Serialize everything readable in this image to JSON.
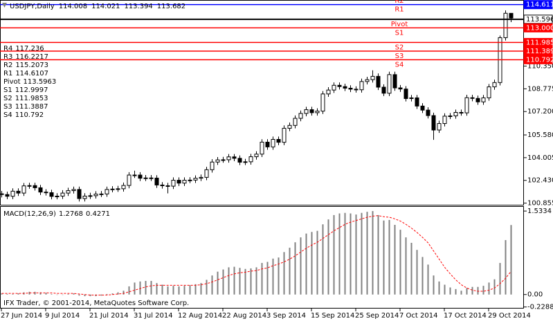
{
  "chart_data": [
    {
      "type": "candlestick",
      "title": "USDJPY,Daily",
      "categories": [
        "27 Jun 2014",
        null,
        null,
        null,
        null,
        null,
        null,
        null,
        "9 Jul 2014",
        null,
        null,
        null,
        null,
        null,
        null,
        null,
        "21 Jul 2014",
        null,
        null,
        null,
        null,
        null,
        null,
        null,
        "31 Jul 2014",
        null,
        null,
        null,
        null,
        null,
        null,
        null,
        "12 Aug 2014",
        null,
        null,
        null,
        null,
        null,
        null,
        null,
        "22 Aug 2014",
        null,
        null,
        null,
        null,
        null,
        null,
        null,
        "3 Sep 2014",
        null,
        null,
        null,
        null,
        null,
        null,
        null,
        "15 Sep 2014",
        null,
        null,
        null,
        null,
        null,
        null,
        null,
        "25 Sep 2014",
        null,
        null,
        null,
        null,
        null,
        null,
        null,
        "7 Oct 2014",
        null,
        null,
        null,
        null,
        null,
        null,
        null,
        "17 Oct 2014",
        null,
        null,
        null,
        null,
        null,
        null,
        null,
        "29 Oct 2014",
        null,
        null,
        null,
        null
      ],
      "open": [
        101.5,
        101.45,
        101.33,
        101.68,
        101.55,
        102.05,
        102.07,
        101.92,
        101.62,
        101.58,
        101.32,
        101.34,
        101.55,
        101.72,
        101.8,
        101.17,
        101.34,
        101.37,
        101.48,
        101.49,
        101.8,
        101.83,
        101.85,
        102.08,
        102.8,
        102.8,
        102.58,
        102.6,
        102.59,
        102.11,
        102.06,
        102.03,
        102.44,
        102.24,
        102.44,
        102.45,
        102.58,
        102.64,
        103.17,
        103.7,
        103.85,
        103.86,
        104.06,
        103.96,
        103.69,
        103.72,
        104.07,
        104.25,
        105.08,
        104.75,
        105.27,
        105.07,
        106.04,
        106.24,
        106.73,
        107.07,
        107.33,
        107.12,
        107.23,
        108.42,
        108.69,
        109.02,
        108.93,
        108.82,
        108.75,
        108.71,
        109.28,
        109.41,
        109.64,
        108.89,
        108.47,
        109.76,
        108.84,
        108.76,
        108.1,
        108.15,
        107.58,
        107.3,
        106.92,
        105.92,
        106.37,
        106.88,
        106.9,
        107.14,
        107.11,
        108.16,
        108.11,
        107.87,
        108.15,
        108.91,
        109.21,
        112.32,
        114.008
      ],
      "high": [
        101.7,
        101.65,
        101.88,
        101.88,
        102.25,
        102.27,
        102.27,
        102.12,
        101.82,
        101.78,
        101.54,
        101.75,
        101.92,
        102.0,
        102.0,
        101.54,
        101.57,
        101.68,
        101.69,
        102.0,
        102.03,
        102.05,
        102.28,
        103.0,
        103.1,
        103.0,
        102.8,
        102.8,
        102.79,
        102.31,
        102.26,
        102.64,
        102.64,
        102.64,
        102.65,
        102.78,
        102.84,
        103.37,
        103.9,
        104.05,
        104.06,
        104.26,
        104.26,
        104.16,
        103.92,
        104.27,
        104.45,
        105.28,
        105.28,
        105.47,
        105.47,
        106.24,
        106.44,
        106.93,
        107.27,
        107.53,
        107.53,
        107.43,
        108.62,
        108.89,
        109.22,
        109.22,
        109.13,
        109.02,
        108.95,
        109.48,
        109.61,
        110.06,
        109.84,
        109.09,
        109.96,
        109.96,
        109.04,
        108.96,
        108.35,
        108.35,
        107.78,
        107.5,
        107.12,
        106.57,
        107.08,
        107.1,
        107.34,
        107.34,
        108.36,
        108.36,
        108.31,
        108.35,
        109.11,
        109.41,
        112.47,
        114.21,
        114.021
      ],
      "low": [
        101.25,
        101.13,
        101.13,
        101.35,
        101.35,
        101.85,
        101.72,
        101.42,
        101.38,
        101.12,
        101.12,
        101.14,
        101.35,
        101.52,
        100.97,
        100.97,
        101.14,
        101.17,
        101.28,
        101.29,
        101.6,
        101.63,
        101.65,
        101.88,
        102.6,
        102.38,
        102.38,
        102.39,
        101.91,
        101.86,
        101.53,
        101.83,
        102.04,
        102.04,
        102.24,
        102.25,
        102.38,
        102.44,
        102.97,
        103.5,
        103.65,
        103.66,
        103.76,
        103.49,
        103.49,
        103.52,
        103.87,
        104.05,
        104.55,
        104.55,
        104.87,
        104.87,
        105.84,
        106.04,
        106.53,
        106.87,
        106.92,
        106.92,
        107.03,
        108.22,
        108.49,
        108.73,
        108.62,
        108.55,
        108.51,
        108.51,
        109.08,
        109.21,
        108.69,
        108.27,
        108.27,
        108.64,
        108.56,
        107.9,
        107.9,
        107.38,
        107.1,
        106.72,
        105.24,
        105.72,
        106.17,
        106.68,
        106.7,
        106.91,
        106.91,
        107.91,
        107.67,
        107.67,
        107.95,
        108.71,
        109.01,
        112.12,
        113.394
      ],
      "close": [
        101.45,
        101.33,
        101.68,
        101.55,
        102.05,
        102.07,
        101.92,
        101.62,
        101.58,
        101.32,
        101.34,
        101.55,
        101.72,
        101.8,
        101.17,
        101.34,
        101.37,
        101.48,
        101.49,
        101.8,
        101.83,
        101.85,
        102.08,
        102.8,
        102.8,
        102.58,
        102.6,
        102.59,
        102.11,
        102.06,
        102.03,
        102.44,
        102.24,
        102.44,
        102.45,
        102.58,
        102.64,
        103.17,
        103.7,
        103.85,
        103.86,
        104.06,
        103.96,
        103.69,
        103.72,
        104.07,
        104.25,
        105.08,
        104.75,
        105.27,
        105.07,
        106.04,
        106.24,
        106.73,
        107.07,
        107.33,
        107.12,
        107.23,
        108.42,
        108.69,
        109.02,
        108.93,
        108.82,
        108.75,
        108.71,
        109.28,
        109.41,
        109.64,
        108.89,
        108.47,
        109.76,
        108.84,
        108.76,
        108.1,
        108.15,
        107.58,
        107.3,
        106.92,
        105.92,
        106.37,
        106.88,
        106.9,
        107.14,
        107.11,
        108.16,
        108.11,
        107.87,
        108.15,
        108.91,
        109.21,
        112.32,
        114.01,
        113.682
      ],
      "up_color": "#ffffff",
      "down_color": "#000000",
      "ylim": [
        100.74,
        114.93
      ],
      "yticks": [
        {
          "value": 110.35,
          "label": "110.350"
        },
        108.775,
        {
          "value": 107.2,
          "label": "107.200"
        },
        {
          "value": 105.58,
          "label": "105.580"
        },
        104.005,
        {
          "value": 102.43,
          "label": "102.430"
        },
        100.855
      ],
      "levels": [
        {
          "name": "R4",
          "value": 117.236,
          "color": "#ff0000"
        },
        {
          "name": "R3",
          "value": 116.2217,
          "color": "#ff0000"
        },
        {
          "name": "R2",
          "value": 115.2073,
          "color": "#ff0000"
        },
        {
          "name": "R1",
          "value": 114.6107,
          "label": "114.611",
          "color": "#0000ff"
        },
        {
          "name": "Pivot",
          "value": 113.5963,
          "label": "113.596",
          "color": "#000000"
        },
        {
          "name": "S1",
          "value": 112.9997,
          "label": "113.000",
          "color": "#ff0000"
        },
        {
          "name": "S2",
          "value": 111.9853,
          "label": "111.985",
          "color": "#ff0000"
        },
        {
          "name": "S3",
          "value": 111.3887,
          "label": "111.389",
          "color": "#ff0000"
        },
        {
          "name": "S4",
          "value": 110.792,
          "label": "110.792",
          "color": "#ff0000"
        }
      ]
    },
    {
      "type": "bar",
      "title": "MACD(12,26,9)",
      "values": [
        0.02,
        0.01,
        0.01,
        0.02,
        0.04,
        0.05,
        0.05,
        0.04,
        0.03,
        0.01,
        0,
        0,
        0.01,
        0.02,
        -0.02,
        -0.03,
        -0.03,
        -0.03,
        -0.02,
        0.01,
        0.02,
        0.04,
        0.07,
        0.15,
        0.22,
        0.24,
        0.25,
        0.25,
        0.21,
        0.18,
        0.15,
        0.16,
        0.15,
        0.16,
        0.17,
        0.19,
        0.21,
        0.27,
        0.35,
        0.42,
        0.46,
        0.5,
        0.51,
        0.49,
        0.47,
        0.48,
        0.5,
        0.58,
        0.6,
        0.66,
        0.68,
        0.78,
        0.86,
        0.96,
        1.05,
        1.12,
        1.15,
        1.17,
        1.29,
        1.38,
        1.46,
        1.49,
        1.5,
        1.49,
        1.47,
        1.5,
        1.52,
        1.5334,
        1.46,
        1.36,
        1.37,
        1.28,
        1.19,
        1.05,
        0.95,
        0.82,
        0.69,
        0.55,
        0.35,
        0.24,
        0.18,
        0.13,
        0.1,
        0.07,
        0.12,
        0.14,
        0.14,
        0.16,
        0.22,
        0.28,
        0.58,
        1.0,
        1.2768
      ],
      "signal": [
        0.02,
        0.02,
        0.02,
        0.02,
        0.02,
        0.03,
        0.03,
        0.03,
        0.03,
        0.03,
        0.02,
        0.02,
        0.02,
        0.02,
        0.01,
        0.0,
        -0.01,
        -0.01,
        -0.01,
        -0.01,
        0.0,
        0.01,
        0.02,
        0.05,
        0.08,
        0.11,
        0.14,
        0.16,
        0.17,
        0.17,
        0.17,
        0.17,
        0.17,
        0.17,
        0.17,
        0.17,
        0.18,
        0.2,
        0.23,
        0.27,
        0.31,
        0.35,
        0.38,
        0.4,
        0.41,
        0.43,
        0.44,
        0.47,
        0.49,
        0.53,
        0.56,
        0.6,
        0.65,
        0.71,
        0.78,
        0.85,
        0.91,
        0.96,
        1.03,
        1.1,
        1.17,
        1.23,
        1.29,
        1.33,
        1.36,
        1.39,
        1.42,
        1.44,
        1.45,
        1.43,
        1.42,
        1.39,
        1.35,
        1.29,
        1.22,
        1.14,
        1.05,
        0.95,
        0.8,
        0.65,
        0.5,
        0.38,
        0.27,
        0.18,
        0.12,
        0.08,
        0.06,
        0.06,
        0.08,
        0.12,
        0.2,
        0.3,
        0.4271
      ],
      "color": "#808080",
      "signal_color": "#ff0000",
      "ylim": [
        -0.2577,
        1.6236
      ],
      "yticks": [
        1.5334,
        {
          "value": 0,
          "label": "0.00"
        },
        -0.2288
      ],
      "annotation": "IFX Trader, © 2001-2014, MetaQuotes Software Corp."
    }
  ]
}
